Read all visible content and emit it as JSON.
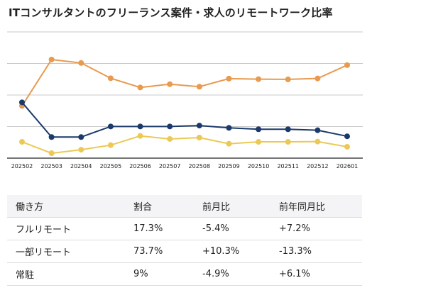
{
  "title": "ITコンサルタントのフリーランス案件・求人のリモートワーク比率",
  "chart_data": {
    "type": "line",
    "title": "ITコンサルタントのフリーランス案件・求人のリモートワーク比率",
    "x": [
      "202502",
      "202503",
      "202504",
      "202505",
      "202506",
      "202507",
      "202508",
      "202509",
      "202510",
      "202511",
      "202512",
      "202601"
    ],
    "ylim": [
      0,
      100
    ],
    "ygrid_step": 25,
    "grid": true,
    "y_tick_labels_shown": false,
    "legend": "none",
    "series": [
      {
        "color": "#e89a4f",
        "values": [
          41.4,
          78.1,
          75.4,
          63.3,
          56.0,
          58.6,
          56.6,
          63.0,
          62.6,
          62.4,
          63.1,
          73.7
        ]
      },
      {
        "color": "#1b3a6b",
        "values": [
          44.2,
          16.7,
          16.7,
          25.1,
          25.1,
          25.1,
          25.8,
          24.0,
          22.9,
          22.9,
          22.1,
          17.3
        ]
      },
      {
        "color": "#ecc955",
        "values": [
          12.9,
          3.9,
          6.7,
          10.3,
          17.6,
          15.2,
          16.3,
          11.4,
          12.9,
          12.9,
          13.1,
          9.0
        ]
      }
    ]
  },
  "table": {
    "headers": [
      "働き方",
      "割合",
      "前月比",
      "前年同月比"
    ],
    "rows": [
      [
        "フルリモート",
        "17.3%",
        "-5.4%",
        "+7.2%"
      ],
      [
        "一部リモート",
        "73.7%",
        "+10.3%",
        "-13.3%"
      ],
      [
        "常駐",
        "9%",
        "-4.9%",
        "+6.1%"
      ]
    ]
  }
}
